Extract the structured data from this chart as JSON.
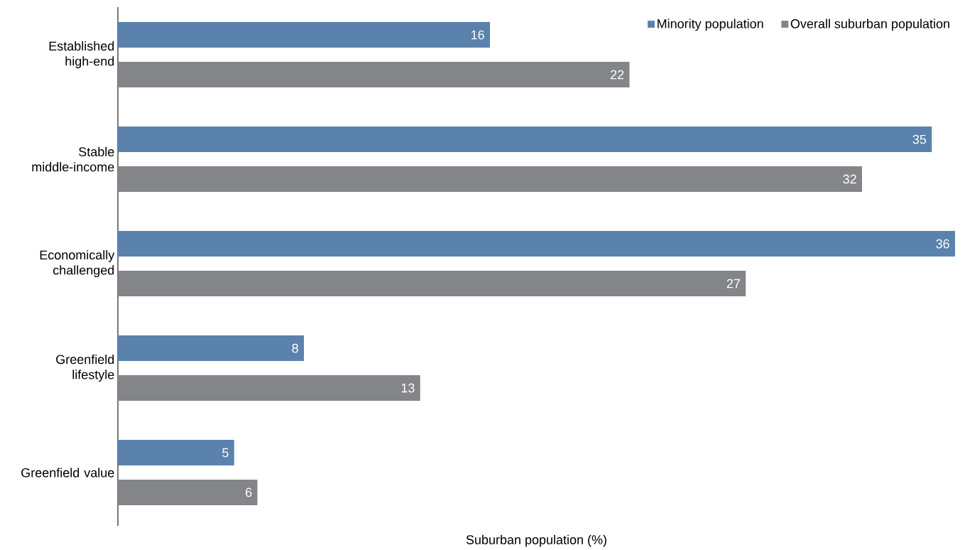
{
  "chart_data": {
    "type": "bar",
    "orientation": "horizontal",
    "xlabel": "Suburban population (%)",
    "categories": [
      "Established high-end",
      "Stable middle-income",
      "Economically challenged",
      "Greenfield lifestyle",
      "Greenfield value"
    ],
    "series": [
      {
        "name": "Minority population",
        "color": "#5b82ad",
        "values": [
          16,
          35,
          36,
          8,
          5
        ]
      },
      {
        "name": "Overall suburban population",
        "color": "#848589",
        "values": [
          22,
          32,
          27,
          13,
          6
        ]
      }
    ],
    "xlim": [
      0,
      36
    ],
    "data_labels": true,
    "legend": "top right"
  }
}
